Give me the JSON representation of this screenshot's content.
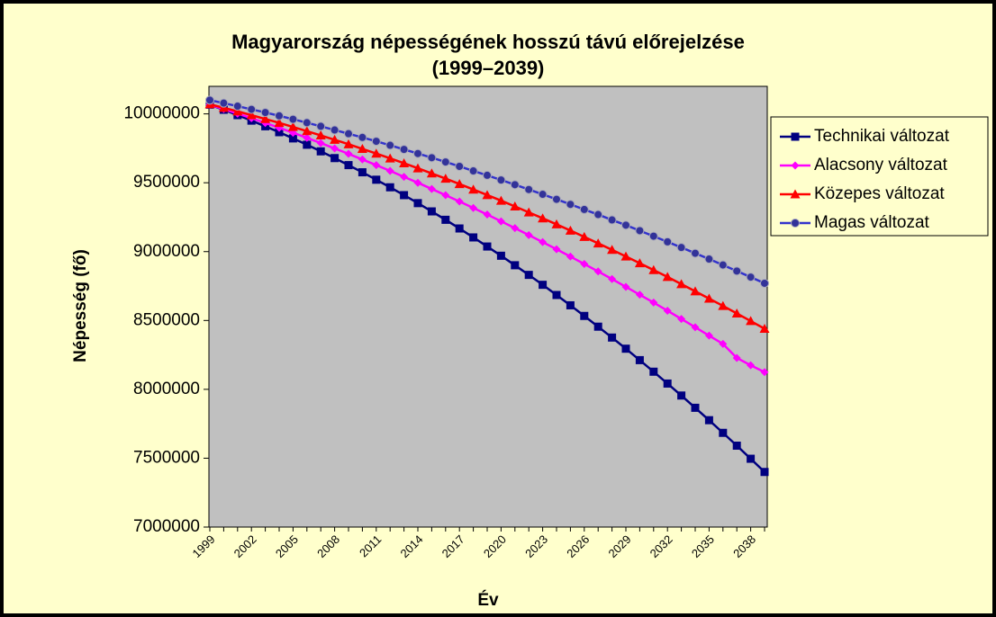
{
  "chart_data": {
    "type": "line",
    "title": "Magyarország népességének hosszú távú előrejelzése",
    "subtitle": "(1999–2039)",
    "x_label": "Év",
    "y_label": "Népesség (fő)",
    "categories": [
      "1999",
      null,
      null,
      "2002",
      null,
      null,
      "2005",
      null,
      null,
      "2008",
      null,
      null,
      "2011",
      null,
      null,
      "2014",
      null,
      null,
      "2017",
      null,
      null,
      "2020",
      null,
      null,
      "2023",
      null,
      null,
      "2026",
      null,
      null,
      "2029",
      null,
      null,
      "2032",
      null,
      null,
      "2035",
      null,
      null,
      "2038",
      null
    ],
    "ylim": [
      7000000,
      10200000
    ],
    "yticks": [
      7000000,
      7500000,
      8000000,
      8500000,
      9000000,
      9500000,
      10000000
    ],
    "grid": false,
    "legend": "right",
    "series": [
      {
        "name": "Technikai változat",
        "color": "#000080",
        "marker": "square",
        "values": [
          10067000,
          10030000,
          9991000,
          9951000,
          9910000,
          9867000,
          9822000,
          9776000,
          9728000,
          9679000,
          9628000,
          9576000,
          9522000,
          9467000,
          9410000,
          9352000,
          9292000,
          9231000,
          9168000,
          9103000,
          9037000,
          8970000,
          8901000,
          8831000,
          8759000,
          8685000,
          8610000,
          8533000,
          8455000,
          8376000,
          8295000,
          8212000,
          8128000,
          8042000,
          7955000,
          7866000,
          7776000,
          7684000,
          7591000,
          7496000,
          7400000
        ]
      },
      {
        "name": "Alacsony változat",
        "color": "#ff00ff",
        "marker": "diamond",
        "values": [
          10067000,
          10035000,
          10002000,
          9969000,
          9934000,
          9899000,
          9863000,
          9826000,
          9788000,
          9749000,
          9710000,
          9669000,
          9628000,
          9586000,
          9543000,
          9500000,
          9455000,
          9410000,
          9364000,
          9317000,
          9269000,
          9220000,
          9171000,
          9120000,
          9069000,
          9017000,
          8964000,
          8910000,
          8856000,
          8801000,
          8744000,
          8687000,
          8630000,
          8571000,
          8511000,
          8451000,
          8390000,
          8330000,
          8228000,
          8175000,
          8125000
        ]
      },
      {
        "name": "Közepes változat",
        "color": "#ff0000",
        "marker": "triangle",
        "values": [
          10070000,
          10044000,
          10018000,
          9991000,
          9963000,
          9935000,
          9905000,
          9875000,
          9844000,
          9812000,
          9780000,
          9746000,
          9712000,
          9677000,
          9642000,
          9605000,
          9568000,
          9530000,
          9491000,
          9451000,
          9411000,
          9370000,
          9328000,
          9285000,
          9242000,
          9198000,
          9153000,
          9107000,
          9060000,
          9013000,
          8965000,
          8916000,
          8866000,
          8816000,
          8764000,
          8712000,
          8659000,
          8606000,
          8551000,
          8496000,
          8440000
        ]
      },
      {
        "name": "Magas változat",
        "color": "#3333cc",
        "marker": "circle",
        "values": [
          10100000,
          10078000,
          10056000,
          10033000,
          10010000,
          9986000,
          9961000,
          9936000,
          9910000,
          9883000,
          9856000,
          9829000,
          9801000,
          9772000,
          9742000,
          9712000,
          9682000,
          9651000,
          9619000,
          9586000,
          9554000,
          9520000,
          9486000,
          9451000,
          9416000,
          9380000,
          9343000,
          9306000,
          9269000,
          9230000,
          9192000,
          9152000,
          9112000,
          9071000,
          9030000,
          8988000,
          8946000,
          8903000,
          8859000,
          8815000,
          8770000
        ]
      }
    ]
  }
}
